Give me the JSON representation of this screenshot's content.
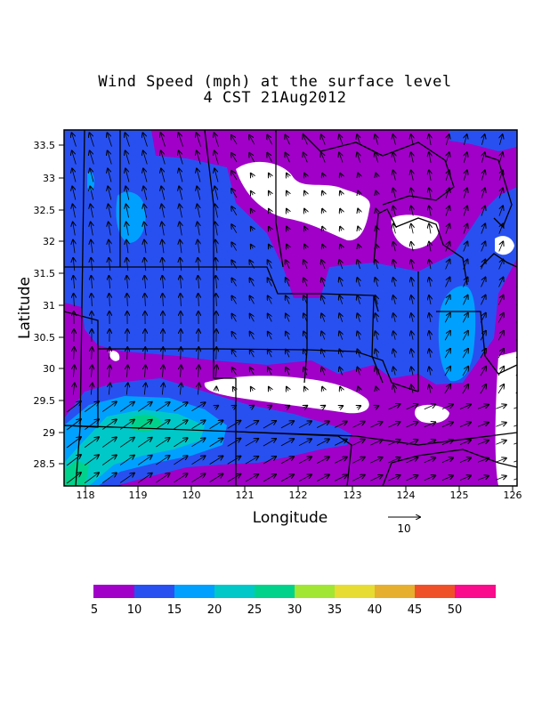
{
  "title_line1": "Wind Speed (mph) at the surface level",
  "title_line2": "4 CST 21Aug2012",
  "axes": {
    "xlabel": "Longitude",
    "ylabel": "Latitude",
    "xticks": [
      "118",
      "119",
      "120",
      "121",
      "122",
      "123",
      "124",
      "125",
      "126"
    ],
    "yticks": [
      "33.5",
      "33",
      "32.5",
      "32",
      "31.5",
      "31",
      "30.5",
      "30",
      "29.5",
      "29",
      "28.5"
    ]
  },
  "reference_vector": {
    "label": "10"
  },
  "colorbar": {
    "labels": [
      "5",
      "10",
      "15",
      "20",
      "25",
      "30",
      "35",
      "40",
      "45",
      "50"
    ],
    "colors": [
      "#a000c8",
      "#2850f0",
      "#00a0ff",
      "#00c8c8",
      "#00d28c",
      "#a0e632",
      "#e6dc32",
      "#e6af2d",
      "#f05028",
      "#fa0a8c"
    ]
  },
  "palette": {
    "below5": "#ffffff",
    "band5_10": "#a000c8",
    "band10_15": "#2850f0",
    "band15_20": "#00a0ff",
    "band20_25": "#00c8c8",
    "band25_30": "#00d28c"
  }
}
